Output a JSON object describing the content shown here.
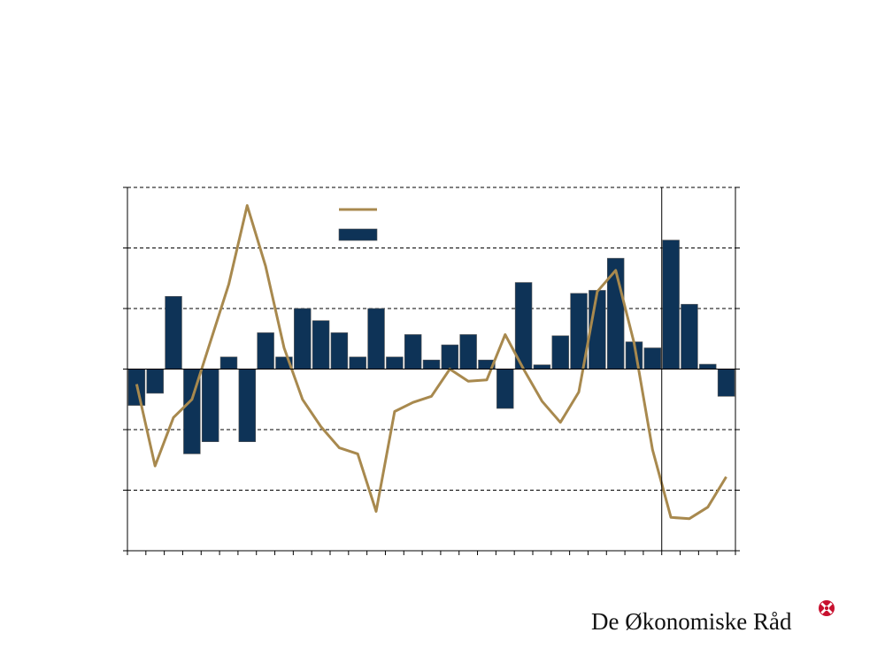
{
  "brand": {
    "name": "De Økonomiske Råd",
    "logo": "red-cross-rosette-logo"
  },
  "colors": {
    "bars": "#0e3357",
    "line": "#a8894e",
    "grid": "#000000",
    "logo": "#c8102e"
  },
  "chart_data": {
    "type": "bar",
    "grid": true,
    "gridline_style": "dashed",
    "legend_placement": "top-center",
    "ylim": [
      -3,
      3
    ],
    "y_gridlines": [
      -2,
      -1,
      0,
      1,
      2,
      3
    ],
    "n_periods": 33,
    "divider_after_period": 29,
    "series": [
      {
        "kind": "bar",
        "values": [
          -0.6,
          -0.4,
          1.2,
          -1.4,
          -1.2,
          0.2,
          -1.2,
          0.6,
          0.2,
          1.0,
          0.8,
          0.6,
          0.2,
          1.0,
          0.2,
          0.57,
          0.15,
          0.4,
          0.57,
          0.15,
          -0.65,
          1.43,
          0.07,
          0.55,
          1.25,
          1.3,
          1.83,
          0.45,
          0.35,
          2.13,
          1.07,
          0.08,
          -0.45
        ]
      },
      {
        "kind": "line",
        "values": [
          -0.25,
          -1.6,
          -0.8,
          -0.5,
          0.45,
          1.4,
          2.7,
          1.7,
          0.35,
          -0.5,
          -0.95,
          -1.3,
          -1.4,
          -2.35,
          -0.7,
          -0.55,
          -0.45,
          0.0,
          -0.2,
          -0.18,
          0.57,
          0.0,
          -0.53,
          -0.88,
          -0.38,
          1.28,
          1.63,
          0.43,
          -1.33,
          -2.45,
          -2.47,
          -2.28,
          -1.78
        ]
      }
    ]
  }
}
